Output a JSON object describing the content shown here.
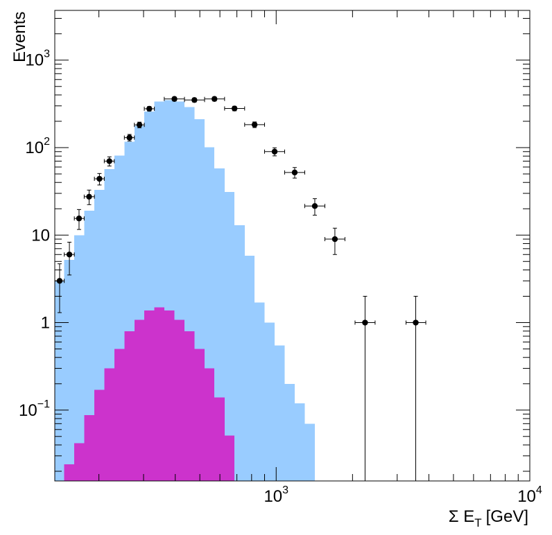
{
  "chart_data": {
    "type": "bar",
    "ylabel": "Events",
    "xlabel_main": "Σ E",
    "xlabel_sub": "T",
    "xlabel_unit": "[GeV]",
    "x_scale": "log",
    "y_scale": "log",
    "xlim": [
      134,
      10000
    ],
    "ylim": [
      0.0155,
      3700
    ],
    "x_ticks": [
      {
        "value": 1000,
        "base": "10",
        "exp": "3"
      },
      {
        "value": 10000,
        "base": "10",
        "exp": "4"
      }
    ],
    "y_ticks": [
      {
        "value": 0.1,
        "text": "",
        "base": "10",
        "exp": "−1"
      },
      {
        "value": 1,
        "text": "1",
        "base": "",
        "exp": ""
      },
      {
        "value": 10,
        "text": "10",
        "base": "",
        "exp": ""
      },
      {
        "value": 100,
        "text": "",
        "base": "10",
        "exp": "2"
      },
      {
        "value": 1000,
        "text": "",
        "base": "10",
        "exp": "3"
      }
    ],
    "bin_edges": [
      134,
      146,
      160,
      175,
      192,
      210,
      230,
      252,
      276,
      302,
      331,
      362,
      397,
      435,
      476,
      522,
      571,
      626,
      685,
      751,
      822,
      900,
      986,
      1080,
      1183,
      1296,
      1420,
      1556,
      1704,
      1867,
      2046,
      2241,
      2455,
      2690,
      2946
    ],
    "series": [
      {
        "color": "#99ccff",
        "values": [
          3.0,
          5.2,
          10.0,
          19.0,
          33.0,
          57.0,
          81.0,
          117.0,
          178.0,
          259.0,
          337.0,
          350.0,
          337.0,
          290.0,
          212.0,
          101.0,
          58.0,
          31.0,
          13.0,
          5.8,
          1.7,
          1.0,
          0.55,
          0.2,
          0.12,
          0.07,
          0.0,
          0.0,
          0.0,
          0.0,
          0.0,
          0.0,
          0.0,
          0.0
        ]
      },
      {
        "color": "#cc33cc",
        "values": [
          0.0,
          0.024,
          0.042,
          0.088,
          0.17,
          0.3,
          0.5,
          0.8,
          1.08,
          1.38,
          1.5,
          1.38,
          1.08,
          0.8,
          0.5,
          0.3,
          0.14,
          0.051,
          0.0,
          0.0,
          0.0,
          0.0,
          0.0,
          0.0,
          0.0,
          0.0,
          0.0,
          0.0,
          0.0,
          0.0,
          0.0,
          0.0,
          0.0,
          0.0
        ]
      }
    ],
    "data_points": [
      {
        "x": 140,
        "y": 3,
        "xlo": 134,
        "xhi": 146,
        "ylo": 1.3,
        "yhi": 4.7
      },
      {
        "x": 153,
        "y": 6,
        "xlo": 146,
        "xhi": 160,
        "ylo": 3.5,
        "yhi": 8.3
      },
      {
        "x": 167,
        "y": 15.5,
        "xlo": 160,
        "xhi": 175,
        "ylo": 11.6,
        "yhi": 19.6
      },
      {
        "x": 183,
        "y": 27.5,
        "xlo": 175,
        "xhi": 192,
        "ylo": 22.3,
        "yhi": 32.7
      },
      {
        "x": 201,
        "y": 44,
        "xlo": 192,
        "xhi": 210,
        "ylo": 37.4,
        "yhi": 50.6
      },
      {
        "x": 220,
        "y": 70,
        "xlo": 210,
        "xhi": 230,
        "ylo": 61.6,
        "yhi": 78.4
      },
      {
        "x": 264,
        "y": 130,
        "xlo": 252,
        "xhi": 276,
        "ylo": 118.6,
        "yhi": 141.4
      },
      {
        "x": 289,
        "y": 182,
        "xlo": 276,
        "xhi": 302,
        "ylo": 168.5,
        "yhi": 195.5
      },
      {
        "x": 316,
        "y": 278,
        "xlo": 302,
        "xhi": 331,
        "ylo": 261.3,
        "yhi": 294.7
      },
      {
        "x": 397,
        "y": 360,
        "xlo": 362,
        "xhi": 435,
        "ylo": 341,
        "yhi": 379
      },
      {
        "x": 476,
        "y": 350,
        "xlo": 435,
        "xhi": 522,
        "ylo": 331.3,
        "yhi": 368.7
      },
      {
        "x": 571,
        "y": 360,
        "xlo": 522,
        "xhi": 626,
        "ylo": 341,
        "yhi": 379
      },
      {
        "x": 685,
        "y": 280,
        "xlo": 626,
        "xhi": 751,
        "ylo": 263.3,
        "yhi": 296.7
      },
      {
        "x": 822,
        "y": 183,
        "xlo": 751,
        "xhi": 900,
        "ylo": 169.5,
        "yhi": 196.5
      },
      {
        "x": 986,
        "y": 90,
        "xlo": 900,
        "xhi": 1080,
        "ylo": 80.5,
        "yhi": 99.5
      },
      {
        "x": 1183,
        "y": 52,
        "xlo": 1080,
        "xhi": 1296,
        "ylo": 44.8,
        "yhi": 59.2
      },
      {
        "x": 1420,
        "y": 21.5,
        "xlo": 1296,
        "xhi": 1556,
        "ylo": 16.9,
        "yhi": 26.1
      },
      {
        "x": 1704,
        "y": 9,
        "xlo": 1556,
        "xhi": 1867,
        "ylo": 6.0,
        "yhi": 12.0
      },
      {
        "x": 2241,
        "y": 1,
        "xlo": 2046,
        "xhi": 2455,
        "ylo": 0.0155,
        "yhi": 2.0
      },
      {
        "x": 3550,
        "y": 1,
        "xlo": 3250,
        "xhi": 3890,
        "ylo": 0.0155,
        "yhi": 2.0
      }
    ],
    "grid": false,
    "legend": "none"
  }
}
